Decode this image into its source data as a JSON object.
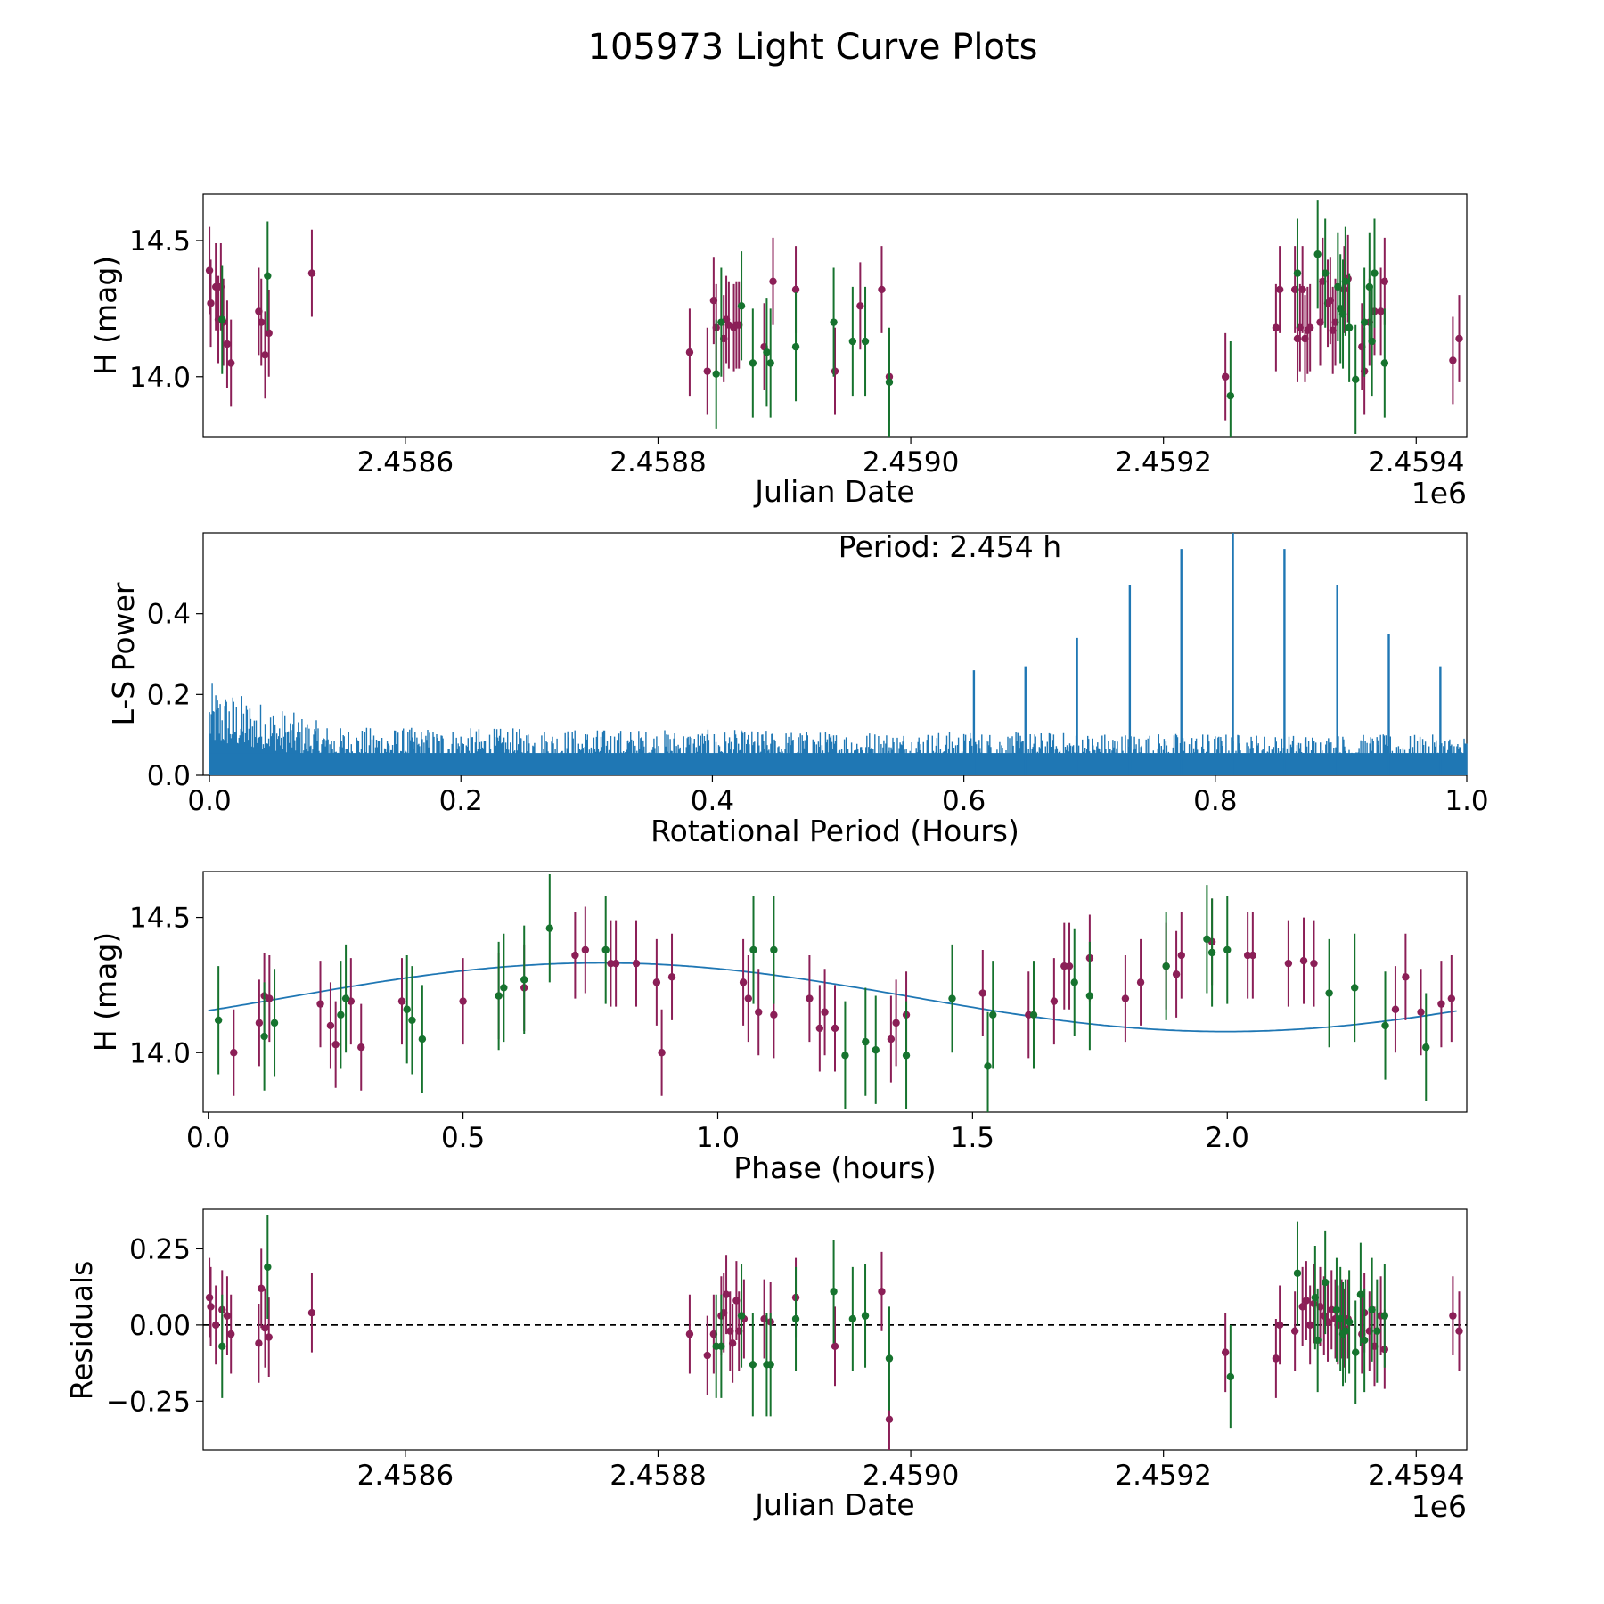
{
  "suptitle": "105973 Light Curve Plots",
  "colors": {
    "maroon": "#8b1f57",
    "green": "#16732e",
    "line": "#1f77b4",
    "axis": "#000000"
  },
  "chart_data": [
    {
      "type": "scatter",
      "title": "",
      "xlabel": "Julian Date",
      "ylabel": "H (mag)",
      "offset_label": "1e6",
      "xlim": [
        2458440,
        2459440
      ],
      "ylim": [
        13.78,
        14.67
      ],
      "xticks": [
        2458600,
        2458800,
        2459000,
        2459200,
        2459400
      ],
      "xticklabels": [
        "2.4586",
        "2.4588",
        "2.4590",
        "2.4592",
        "2.4594"
      ],
      "yticks": [
        14.0,
        14.5
      ],
      "yticklabels": [
        "14.0",
        "14.5"
      ],
      "series": [
        {
          "name": "maroon",
          "color_key": "maroon",
          "err": 0.16,
          "x": [
            2458445,
            2458446,
            2458450,
            2458452,
            2458454,
            2458456,
            2458459,
            2458462,
            2458484,
            2458486,
            2458489,
            2458492,
            2458526,
            2458825,
            2458839,
            2458844,
            2458846,
            2458852,
            2458854,
            2458856,
            2458860,
            2458862,
            2458864,
            2458884,
            2458891,
            2458909,
            2458940,
            2458960,
            2458977,
            2458983,
            2459249,
            2459289,
            2459292,
            2459304,
            2459306,
            2459308,
            2459310,
            2459312,
            2459314,
            2459316,
            2459324,
            2459326,
            2459330,
            2459332,
            2459334,
            2459336,
            2459343,
            2459346,
            2459357,
            2459359,
            2459363,
            2459367,
            2459372,
            2459375,
            2459429,
            2459434
          ],
          "y": [
            14.39,
            14.27,
            14.33,
            14.21,
            14.33,
            14.2,
            14.12,
            14.05,
            14.24,
            14.2,
            14.08,
            14.16,
            14.38,
            14.09,
            14.02,
            14.28,
            14.18,
            14.14,
            14.21,
            14.19,
            14.18,
            14.19,
            14.19,
            14.11,
            14.35,
            14.32,
            14.02,
            14.26,
            14.32,
            14.0,
            14.0,
            14.18,
            14.32,
            14.32,
            14.14,
            14.18,
            14.32,
            14.14,
            14.17,
            14.18,
            14.2,
            14.35,
            14.27,
            14.28,
            14.17,
            14.2,
            14.32,
            14.36,
            14.11,
            14.02,
            14.2,
            14.24,
            14.24,
            14.35,
            14.06,
            14.14
          ]
        },
        {
          "name": "green",
          "color_key": "green",
          "err": 0.2,
          "x": [
            2458455,
            2458491,
            2458846,
            2458850,
            2458866,
            2458875,
            2458886,
            2458889,
            2458909,
            2458939,
            2458954,
            2458964,
            2458983,
            2459253,
            2459306,
            2459322,
            2459328,
            2459338,
            2459340,
            2459342,
            2459344,
            2459347,
            2459352,
            2459359,
            2459363,
            2459365,
            2459367,
            2459375
          ],
          "y": [
            14.21,
            14.37,
            14.01,
            14.2,
            14.26,
            14.05,
            14.09,
            14.05,
            14.11,
            14.2,
            14.13,
            14.13,
            13.98,
            13.93,
            14.38,
            14.45,
            14.38,
            14.33,
            14.25,
            14.23,
            14.35,
            14.18,
            13.99,
            14.2,
            14.33,
            14.13,
            14.38,
            14.05
          ]
        }
      ]
    },
    {
      "type": "line",
      "title": "Period: 2.454 h",
      "xlabel": "Rotational Period (Hours)",
      "ylabel": "L-S Power",
      "xlim": [
        -0.005,
        1.0
      ],
      "ylim": [
        0.0,
        0.6
      ],
      "xticks": [
        0.0,
        0.2,
        0.4,
        0.6,
        0.8,
        1.0
      ],
      "xticklabels": [
        "0.0",
        "0.2",
        "0.4",
        "0.6",
        "0.8",
        "1.0"
      ],
      "yticks": [
        0.0,
        0.2,
        0.4
      ],
      "yticklabels": [
        "0.0",
        "0.2",
        "0.4"
      ],
      "noise_max_start": 0.23,
      "noise_max_mid": 0.12,
      "noise_max_end": 0.1,
      "peaks": {
        "x": [
          0.608,
          0.649,
          0.69,
          0.732,
          0.773,
          0.814,
          0.855,
          0.897,
          0.938,
          0.979
        ],
        "y": [
          0.26,
          0.27,
          0.34,
          0.47,
          0.56,
          0.6,
          0.56,
          0.47,
          0.35,
          0.27
        ]
      }
    },
    {
      "type": "scatter",
      "title": "",
      "xlabel": "Phase (hours)",
      "ylabel": "H (mag)",
      "xlim": [
        -0.01,
        2.47
      ],
      "ylim": [
        13.78,
        14.67
      ],
      "xticks": [
        0.0,
        0.5,
        1.0,
        1.5,
        2.0
      ],
      "xticklabels": [
        "0.0",
        "0.5",
        "1.0",
        "1.5",
        "2.0"
      ],
      "yticks": [
        14.0,
        14.5
      ],
      "yticklabels": [
        "14.0",
        "14.5"
      ],
      "model": {
        "mean": 14.205,
        "amplitude": 0.127,
        "period": 2.454,
        "peak_phase": 0.77
      },
      "series": [
        {
          "name": "maroon",
          "color_key": "maroon",
          "err": 0.16,
          "x": [
            0.05,
            0.1,
            0.11,
            0.12,
            0.22,
            0.24,
            0.25,
            0.28,
            0.3,
            0.38,
            0.5,
            0.57,
            0.62,
            0.72,
            0.74,
            0.79,
            0.8,
            0.84,
            0.88,
            0.89,
            0.91,
            1.05,
            1.06,
            1.08,
            1.11,
            1.18,
            1.2,
            1.21,
            1.23,
            1.34,
            1.35,
            1.37,
            1.52,
            1.61,
            1.66,
            1.68,
            1.69,
            1.73,
            1.8,
            1.83,
            1.88,
            1.9,
            1.91,
            1.97,
            2.04,
            2.05,
            2.12,
            2.15,
            2.17,
            2.33,
            2.35,
            2.38,
            2.42,
            2.44
          ],
          "y": [
            14.0,
            14.11,
            14.21,
            14.2,
            14.18,
            14.1,
            14.03,
            14.19,
            14.02,
            14.19,
            14.19,
            14.21,
            14.24,
            14.36,
            14.38,
            14.33,
            14.33,
            14.33,
            14.26,
            14.0,
            14.28,
            14.26,
            14.2,
            14.15,
            14.14,
            14.2,
            14.09,
            14.15,
            14.09,
            14.05,
            14.11,
            14.14,
            14.22,
            14.14,
            14.19,
            14.32,
            14.32,
            14.35,
            14.2,
            14.26,
            14.32,
            14.29,
            14.36,
            14.41,
            14.36,
            14.36,
            14.33,
            14.34,
            14.33,
            14.16,
            14.28,
            14.15,
            14.18,
            14.2
          ]
        },
        {
          "name": "green",
          "color_key": "green",
          "err": 0.2,
          "x": [
            0.02,
            0.11,
            0.13,
            0.26,
            0.27,
            0.39,
            0.4,
            0.42,
            0.57,
            0.58,
            0.62,
            0.67,
            0.78,
            1.07,
            1.11,
            1.25,
            1.29,
            1.31,
            1.37,
            1.46,
            1.53,
            1.54,
            1.62,
            1.7,
            1.73,
            1.88,
            1.96,
            1.97,
            2.0,
            2.2,
            2.25,
            2.31,
            2.39
          ],
          "y": [
            14.12,
            14.06,
            14.11,
            14.14,
            14.2,
            14.16,
            14.12,
            14.05,
            14.21,
            14.24,
            14.27,
            14.46,
            14.38,
            14.38,
            14.38,
            13.99,
            14.04,
            14.01,
            13.99,
            14.2,
            13.95,
            14.14,
            14.14,
            14.26,
            14.21,
            14.32,
            14.42,
            14.37,
            14.38,
            14.22,
            14.24,
            14.1,
            14.02
          ]
        }
      ]
    },
    {
      "type": "scatter",
      "title": "",
      "xlabel": "Julian Date",
      "ylabel": "Residuals",
      "offset_label": "1e6",
      "xlim": [
        2458440,
        2459440
      ],
      "ylim": [
        -0.41,
        0.38
      ],
      "xticks": [
        2458600,
        2458800,
        2459000,
        2459200,
        2459400
      ],
      "xticklabels": [
        "2.4586",
        "2.4588",
        "2.4590",
        "2.4592",
        "2.4594"
      ],
      "yticks": [
        -0.25,
        0.0,
        0.25
      ],
      "yticklabels": [
        "−0.25",
        "0.00",
        "0.25"
      ],
      "zero_line": 0.0,
      "series": [
        {
          "name": "maroon",
          "color_key": "maroon",
          "err": 0.13,
          "x": [
            2458445,
            2458446,
            2458450,
            2458455,
            2458459,
            2458462,
            2458484,
            2458486,
            2458489,
            2458492,
            2458526,
            2458825,
            2458839,
            2458844,
            2458850,
            2458852,
            2458854,
            2458857,
            2458859,
            2458862,
            2458864,
            2458868,
            2458884,
            2458889,
            2458909,
            2458940,
            2458977,
            2458983,
            2459249,
            2459289,
            2459292,
            2459304,
            2459310,
            2459313,
            2459316,
            2459319,
            2459324,
            2459327,
            2459330,
            2459333,
            2459336,
            2459338,
            2459341,
            2459343,
            2459346,
            2459357,
            2459359,
            2459363,
            2459367,
            2459372,
            2459375,
            2459429,
            2459434
          ],
          "y": [
            0.09,
            0.06,
            0.0,
            0.05,
            0.03,
            -0.03,
            -0.06,
            0.12,
            -0.01,
            -0.04,
            0.04,
            -0.03,
            -0.1,
            -0.03,
            0.03,
            0.04,
            0.1,
            -0.02,
            -0.06,
            0.08,
            -0.02,
            0.02,
            0.02,
            0.01,
            0.09,
            -0.07,
            0.11,
            -0.31,
            -0.09,
            -0.11,
            0.0,
            -0.02,
            0.06,
            0.08,
            0.0,
            0.07,
            0.06,
            0.03,
            0.01,
            0.05,
            0.02,
            0.0,
            0.02,
            -0.01,
            0.02,
            -0.03,
            0.04,
            -0.02,
            -0.07,
            0.03,
            -0.08,
            0.03,
            -0.02
          ]
        },
        {
          "name": "green",
          "color_key": "green",
          "err": 0.17,
          "x": [
            2458455,
            2458491,
            2458846,
            2458850,
            2458866,
            2458875,
            2458886,
            2458889,
            2458909,
            2458939,
            2458954,
            2458964,
            2458983,
            2459253,
            2459306,
            2459320,
            2459322,
            2459328,
            2459337,
            2459340,
            2459342,
            2459344,
            2459347,
            2459352,
            2459356,
            2459359,
            2459365,
            2459369,
            2459375
          ],
          "y": [
            -0.07,
            0.19,
            -0.07,
            -0.07,
            0.03,
            -0.13,
            -0.13,
            -0.13,
            0.02,
            0.11,
            0.02,
            0.03,
            -0.11,
            -0.17,
            0.17,
            0.09,
            -0.05,
            0.14,
            0.05,
            0.02,
            -0.03,
            -0.02,
            0.01,
            -0.09,
            0.1,
            -0.05,
            0.05,
            -0.02,
            0.03
          ]
        }
      ]
    }
  ]
}
